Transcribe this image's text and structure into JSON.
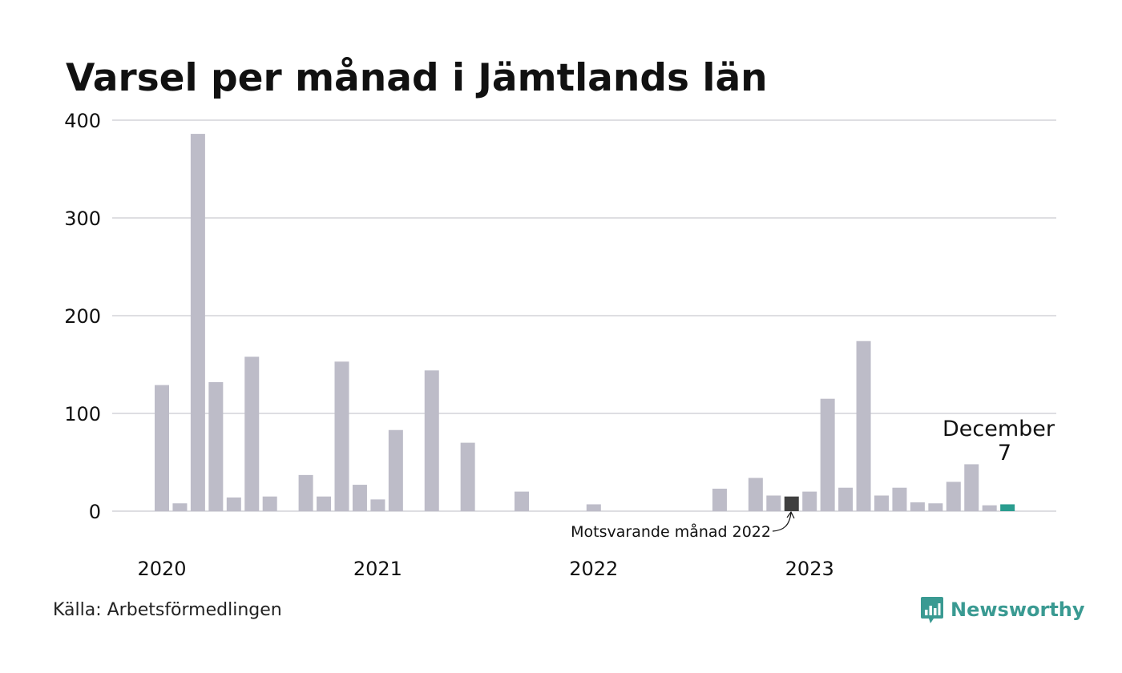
{
  "header": {
    "title": "Varsel per månad i Jämtlands län"
  },
  "footer": {
    "source": "Källa: Arbetsförmedlingen",
    "brand": "Newsworthy"
  },
  "colors": {
    "bar": "#bdbcc8",
    "highlight_prev": "#3f3f3f",
    "highlight_current": "#2a9d8f",
    "grid": "#dedee2"
  },
  "annotations": {
    "current_month_label": "December",
    "current_month_value": "7",
    "previous_year_label": "Motsvarande månad 2022"
  },
  "chart_data": {
    "type": "bar",
    "title": "Varsel per månad i Jämtlands län",
    "xlabel": "",
    "ylabel": "",
    "ylim": [
      0,
      400
    ],
    "yticks": [
      0,
      100,
      200,
      300,
      400
    ],
    "year_labels": [
      "2020",
      "2021",
      "2022",
      "2023"
    ],
    "categories": [
      "2020-01",
      "2020-02",
      "2020-03",
      "2020-04",
      "2020-05",
      "2020-06",
      "2020-07",
      "2020-08",
      "2020-09",
      "2020-10",
      "2020-11",
      "2020-12",
      "2021-01",
      "2021-02",
      "2021-03",
      "2021-04",
      "2021-05",
      "2021-06",
      "2021-07",
      "2021-08",
      "2021-09",
      "2021-10",
      "2021-11",
      "2021-12",
      "2022-01",
      "2022-02",
      "2022-03",
      "2022-04",
      "2022-05",
      "2022-06",
      "2022-07",
      "2022-08",
      "2022-09",
      "2022-10",
      "2022-11",
      "2022-12",
      "2023-01",
      "2023-02",
      "2023-03",
      "2023-04",
      "2023-05",
      "2023-06",
      "2023-07",
      "2023-08",
      "2023-09",
      "2023-10",
      "2023-11",
      "2023-12"
    ],
    "values": [
      129,
      8,
      386,
      132,
      14,
      158,
      15,
      0,
      37,
      15,
      153,
      27,
      12,
      83,
      0,
      144,
      0,
      70,
      0,
      0,
      20,
      0,
      0,
      0,
      7,
      0,
      0,
      0,
      0,
      0,
      0,
      23,
      0,
      34,
      16,
      15,
      20,
      115,
      24,
      174,
      16,
      24,
      9,
      8,
      30,
      48,
      6,
      7
    ],
    "highlight_previous_index": 35,
    "highlight_current_index": 47,
    "grid": true,
    "legend": "none"
  }
}
